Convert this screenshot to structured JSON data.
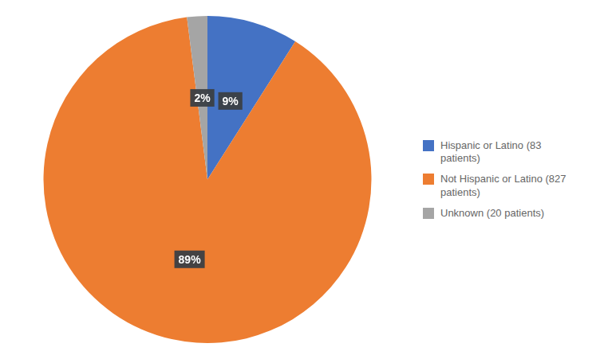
{
  "chart_data": {
    "type": "pie",
    "categories": [
      "Hispanic or Latino (83\npatients)",
      "Not Hispanic or Latino (827\npatients)",
      "Unknown (20 patients)"
    ],
    "values": [
      9,
      89,
      2
    ],
    "value_labels": [
      "9%",
      "89%",
      "2%"
    ],
    "colors": [
      "#4472C4",
      "#ED7D31",
      "#A5A5A5"
    ],
    "data_labels": true,
    "legend": "right"
  }
}
